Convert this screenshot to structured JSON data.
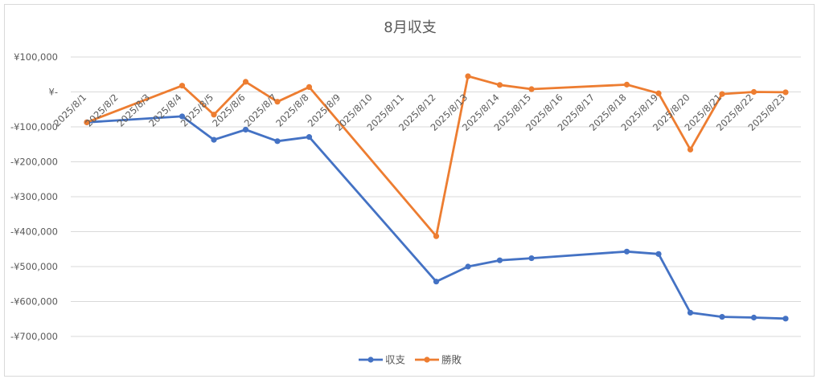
{
  "chart_data": {
    "type": "line",
    "title": "8月収支",
    "xlabel": "",
    "ylabel": "",
    "ylim": [
      -700000,
      100000
    ],
    "yticks": [
      100000,
      0,
      -100000,
      -200000,
      -300000,
      -400000,
      -500000,
      -600000,
      -700000
    ],
    "ytick_labels": [
      "¥100,000",
      "¥-",
      "-¥100,000",
      "-¥200,000",
      "-¥300,000",
      "-¥400,000",
      "-¥500,000",
      "-¥600,000",
      "-¥700,000"
    ],
    "categories": [
      "2025/8/1",
      "2025/8/2",
      "2025/8/3",
      "2025/8/4",
      "2025/8/5",
      "2025/8/6",
      "2025/8/7",
      "2025/8/8",
      "2025/8/9",
      "2025/8/10",
      "2025/8/11",
      "2025/8/12",
      "2025/8/13",
      "2025/8/14",
      "2025/8/15",
      "2025/8/16",
      "2025/8/17",
      "2025/8/18",
      "2025/8/19",
      "2025/8/20",
      "2025/8/21",
      "2025/8/22",
      "2025/8/23"
    ],
    "grid": true,
    "legend_position": "bottom",
    "series": [
      {
        "name": "収支",
        "color": "#4472c4",
        "values": [
          -87000,
          null,
          null,
          -70000,
          -137000,
          -108000,
          -141000,
          -129000,
          null,
          null,
          null,
          -543000,
          -500000,
          -482000,
          -476000,
          null,
          null,
          -457000,
          -464000,
          -632000,
          -644000,
          -646000,
          -649000
        ]
      },
      {
        "name": "勝敗",
        "color": "#ed7d31",
        "values": [
          -87000,
          null,
          null,
          18000,
          -65000,
          29000,
          -28000,
          14000,
          null,
          null,
          null,
          -413000,
          45000,
          20000,
          8000,
          null,
          null,
          21000,
          -4000,
          -165000,
          -6000,
          0,
          -1000
        ]
      }
    ]
  }
}
